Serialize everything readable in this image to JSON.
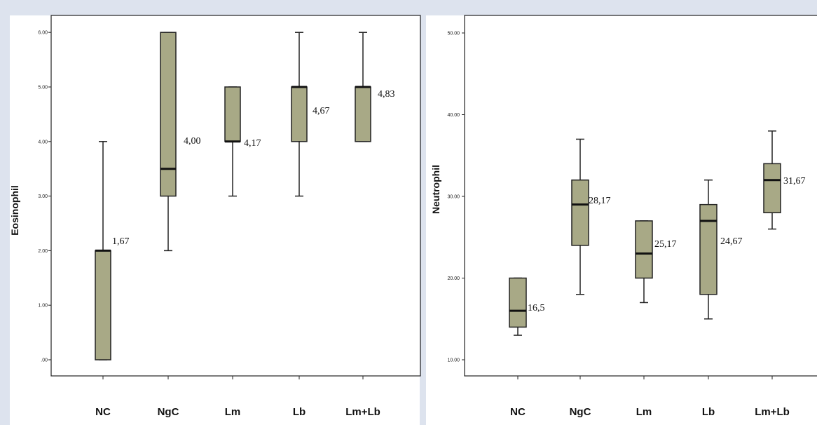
{
  "chart_data": [
    {
      "type": "box",
      "ylabel": "Eosinophil",
      "categories": [
        "NC",
        "NgC",
        "Lm",
        "Lb",
        "Lm+Lb"
      ],
      "yticks": [
        ".00",
        "1.00",
        "2.00",
        "3.00",
        "4.00",
        "5.00",
        "6.00"
      ],
      "ylim": [
        0,
        6
      ],
      "boxes": [
        {
          "min": 0,
          "q1": 0,
          "median": 2,
          "q3": 2,
          "max": 4,
          "label": "1,67"
        },
        {
          "min": 2,
          "q1": 3,
          "median": 3.5,
          "q3": 6,
          "max": 6,
          "label": "4,00"
        },
        {
          "min": 3,
          "q1": 4,
          "median": 4,
          "q3": 5,
          "max": 5,
          "label": "4,17"
        },
        {
          "min": 3,
          "q1": 4,
          "median": 5,
          "q3": 5,
          "max": 6,
          "label": "4,67"
        },
        {
          "min": 4,
          "q1": 4,
          "median": 5,
          "q3": 5,
          "max": 6,
          "label": "4,83"
        }
      ],
      "box_color": "#a8a986",
      "grid": false
    },
    {
      "type": "box",
      "ylabel": "Neutrophil",
      "categories": [
        "NC",
        "NgC",
        "Lm",
        "Lb",
        "Lm+Lb"
      ],
      "yticks": [
        "10.00",
        "20.00",
        "30.00",
        "40.00",
        "50.00"
      ],
      "ylim": [
        10,
        50
      ],
      "boxes": [
        {
          "min": 13,
          "q1": 14,
          "median": 16,
          "q3": 20,
          "max": 20,
          "label": "16,5"
        },
        {
          "min": 18,
          "q1": 24,
          "median": 29,
          "q3": 32,
          "max": 37,
          "label": "28,17"
        },
        {
          "min": 17,
          "q1": 20,
          "median": 23,
          "q3": 27,
          "max": 27,
          "label": "25,17"
        },
        {
          "min": 15,
          "q1": 18,
          "median": 27,
          "q3": 29,
          "max": 32,
          "label": "24,67"
        },
        {
          "min": 26,
          "q1": 28,
          "median": 32,
          "q3": 34,
          "max": 38,
          "label": "31,67"
        }
      ],
      "box_color": "#a8a986",
      "grid": false
    }
  ]
}
